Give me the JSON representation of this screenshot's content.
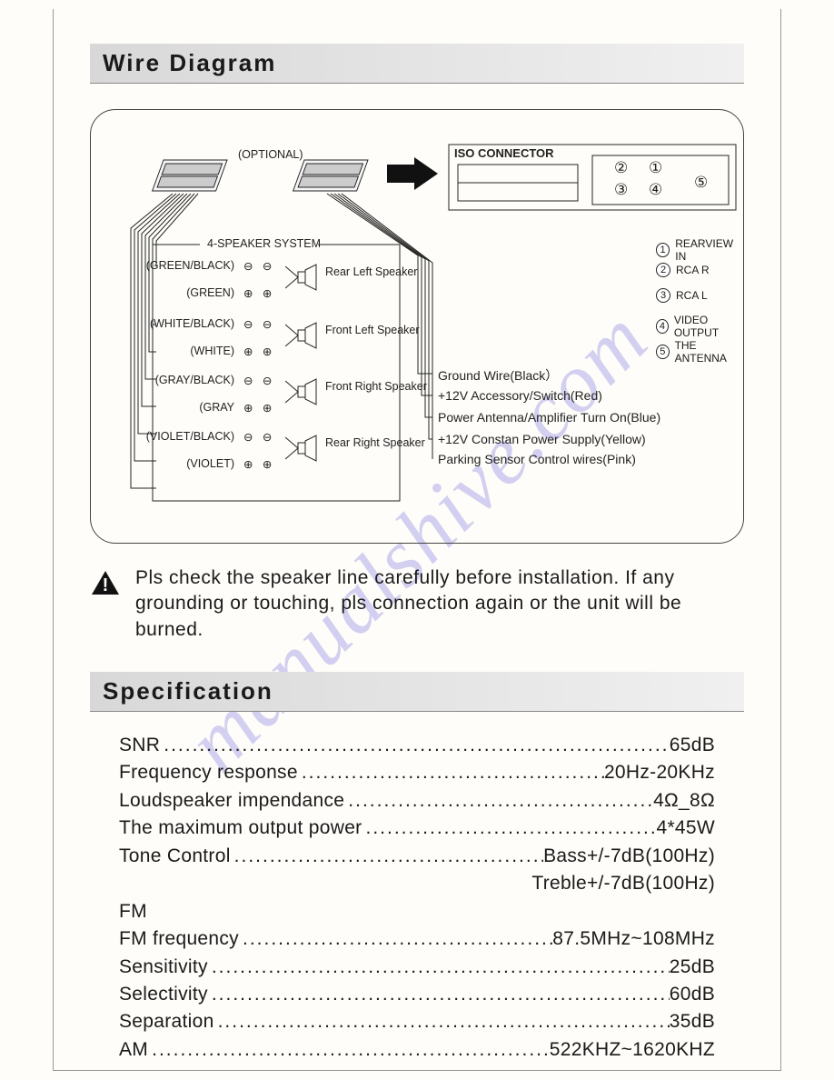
{
  "watermark": "manualshive.com",
  "sections": {
    "wire_title": "Wire Diagram",
    "spec_title": "Specification"
  },
  "diagram": {
    "optional_label": "(OPTIONAL)",
    "iso_label": "ISO CONNECTOR",
    "speaker_system_label": "4-SPEAKER SYSTEM",
    "wires": [
      {
        "color": "(GREEN/BLACK)",
        "pol": "−"
      },
      {
        "color": "(GREEN)",
        "pol": "+"
      },
      {
        "color": "(WHITE/BLACK)",
        "pol": "−"
      },
      {
        "color": "(WHITE)",
        "pol": "+"
      },
      {
        "color": "(GRAY/BLACK)",
        "pol": "−"
      },
      {
        "color": "(GRAY",
        "pol": "+"
      },
      {
        "color": "(VIOLET/BLACK)",
        "pol": "−"
      },
      {
        "color": "(VIOLET)",
        "pol": "+"
      }
    ],
    "speakers": [
      "Rear Left Speaker",
      "Front Left Speaker",
      "Front Right Speaker",
      "Rear Right Speaker"
    ],
    "power_lines": [
      "Ground  Wire(Black）",
      "+12V Accessory/Switch(Red)",
      "Power Antenna/Amplifier Turn On(Blue)",
      "+12V Constan Power Supply(Yellow)",
      "Parking Sensor Control wires(Pink)"
    ],
    "legend": [
      {
        "n": "①",
        "t": "REARVIEW IN"
      },
      {
        "n": "②",
        "t": "RCA R"
      },
      {
        "n": "③",
        "t": "RCA L"
      },
      {
        "n": "④",
        "t": "VIDEO OUTPUT"
      },
      {
        "n": "⑤",
        "t": "THE ANTENNA"
      }
    ],
    "panel_nums": [
      "②",
      "①",
      "③",
      "④",
      "⑤"
    ]
  },
  "warning": "Pls check the speaker line carefully before installation. If any grounding or touching, pls connection again or the unit will be burned.",
  "specs": [
    {
      "label": "SNR ",
      "value": "65dB"
    },
    {
      "label": "Frequency response",
      "value": "20Hz-20KHz"
    },
    {
      "label": "Loudspeaker impendance ",
      "value": "4Ω_8Ω"
    },
    {
      "label": "The maximum output power ",
      "value": "4*45W"
    },
    {
      "label": "Tone Control",
      "value": "Bass+/-7dB(100Hz)"
    },
    {
      "label": "",
      "value": "Treble+/-7dB(100Hz)",
      "right_only": true
    },
    {
      "label": "FM",
      "value": "",
      "nodots": true
    },
    {
      "label": "FM frequency",
      "value": "87.5MHz~108MHz"
    },
    {
      "label": "Sensitivity",
      "value": "25dB"
    },
    {
      "label": "Selectivity",
      "value": "60dB"
    },
    {
      "label": "Separation",
      "value": "35dB"
    },
    {
      "label": "AM",
      "value": "522KHZ~1620KHZ"
    }
  ],
  "colors": {
    "text": "#1a1a1a",
    "border": "#444444",
    "header_bg_start": "#d8d8d8",
    "header_bg_end": "#f0f0f0",
    "watermark": "rgba(100,90,220,0.28)"
  }
}
